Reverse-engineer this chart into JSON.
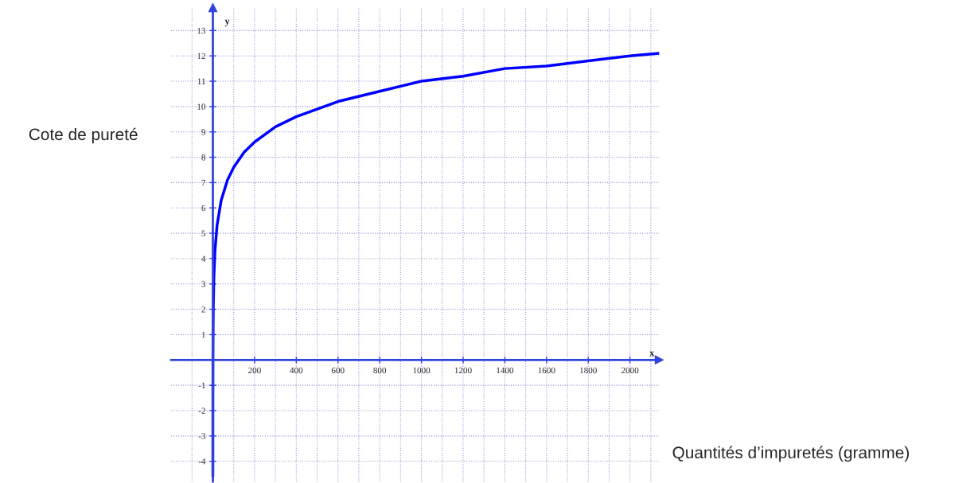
{
  "chart_data": {
    "type": "line",
    "xlabel": "Quantités d’impuretés (gramme)",
    "ylabel": "Cote de pureté",
    "annotations": [
      "x",
      "y"
    ],
    "x": [
      0.02,
      0.1,
      0.5,
      1,
      2,
      5,
      10,
      20,
      40,
      70,
      100,
      150,
      200,
      300,
      400,
      600,
      800,
      1000,
      1200,
      1400,
      1600,
      1800,
      2000,
      2140
    ],
    "series": [
      {
        "color": "#0000ff",
        "values": [
          -4.6,
          -2.3,
          0.0,
          1.0,
          2.0,
          3.3,
          4.3,
          5.3,
          6.3,
          7.1,
          7.6,
          8.2,
          8.6,
          9.2,
          9.6,
          10.2,
          10.6,
          11.0,
          11.2,
          11.5,
          11.6,
          11.8,
          12.0,
          12.1
        ]
      }
    ],
    "xlim": [
      -200,
      2140
    ],
    "ylim": [
      -4.8,
      13.9
    ],
    "xticks": [
      {
        "value": -100,
        "label": null
      },
      {
        "value": 100,
        "label": null
      },
      200,
      {
        "value": 300,
        "label": null
      },
      400,
      {
        "value": 500,
        "label": null
      },
      600,
      {
        "value": 700,
        "label": null
      },
      800,
      {
        "value": 900,
        "label": null
      },
      1000,
      {
        "value": 1100,
        "label": null
      },
      1200,
      {
        "value": 1300,
        "label": null
      },
      1400,
      {
        "value": 1500,
        "label": null
      },
      1600,
      {
        "value": 1700,
        "label": null
      },
      1800,
      {
        "value": 1900,
        "label": null
      },
      2000,
      {
        "value": 2100,
        "label": null
      }
    ],
    "yticks": [
      -4,
      -3,
      -2,
      -1,
      {
        "value": 0,
        "label": null
      },
      1,
      2,
      3,
      4,
      5,
      6,
      7,
      8,
      9,
      10,
      11,
      12,
      13
    ],
    "grid": true,
    "marker": "none",
    "line_style": "solid",
    "legend": false
  }
}
